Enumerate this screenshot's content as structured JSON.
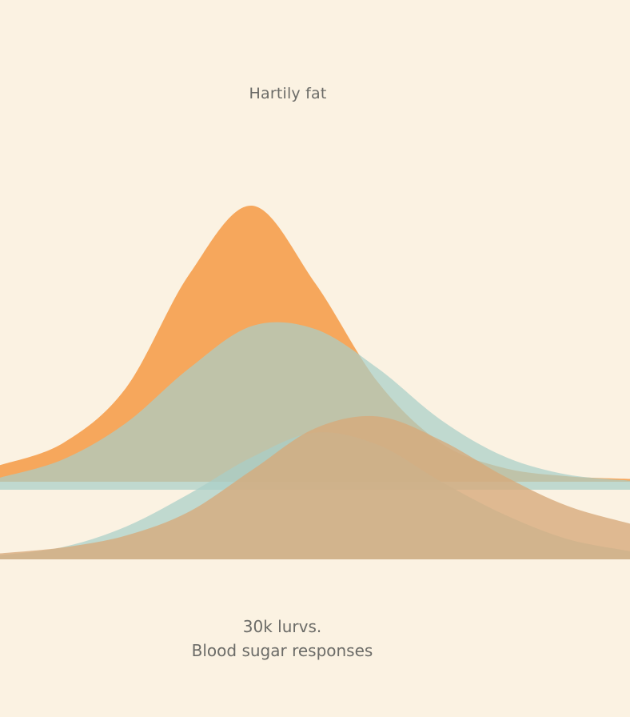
{
  "chart_data": {
    "type": "area",
    "title": "Hartily fat",
    "subtitle": "30k lurvs.",
    "xlabel": "",
    "ylabel": "",
    "grid": false,
    "legend": "none",
    "x": [
      0,
      1,
      2,
      3,
      4,
      5,
      6,
      7,
      8,
      9,
      10
    ],
    "series": [
      {
        "values": [
          0.06,
          0.14,
          0.34,
          0.75,
          1.0,
          0.72,
          0.36,
          0.14,
          0.05,
          0.02,
          0.01
        ],
        "color": "#f5a254"
      },
      {
        "values": [
          0.04,
          0.1,
          0.22,
          0.4,
          0.54,
          0.53,
          0.4,
          0.23,
          0.11,
          0.05,
          0.03
        ],
        "color": "#a9cfc8"
      },
      {
        "values": [
          0.01,
          0.03,
          0.08,
          0.16,
          0.25,
          0.31,
          0.28,
          0.19,
          0.11,
          0.05,
          0.02
        ],
        "color": "#a9cfc8"
      },
      {
        "values": [
          0.01,
          0.02,
          0.04,
          0.08,
          0.15,
          0.22,
          0.24,
          0.2,
          0.14,
          0.09,
          0.06
        ],
        "color": "#d7a97a"
      }
    ]
  },
  "footer": {
    "caption": "Blood sugar responses"
  }
}
